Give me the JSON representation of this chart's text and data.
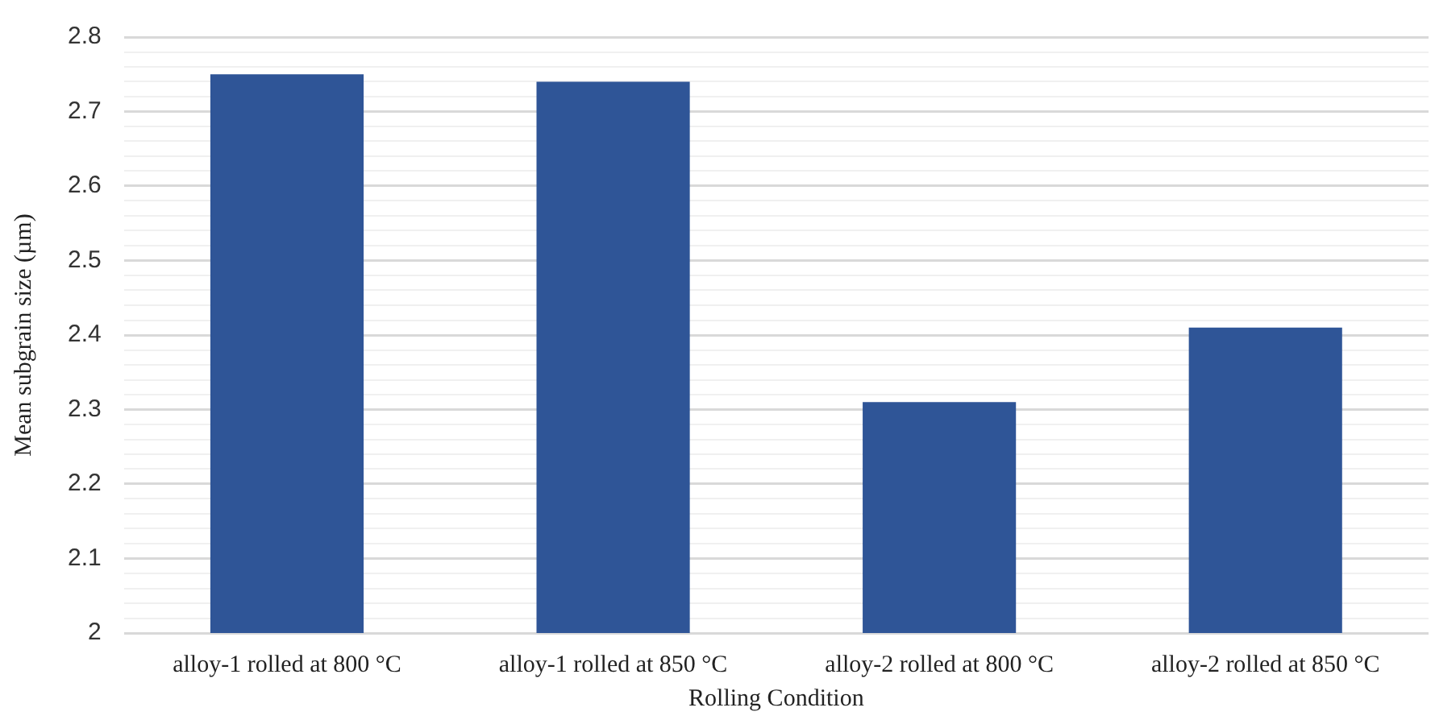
{
  "chart_data": {
    "type": "bar",
    "xlabel": "Rolling Condition",
    "ylabel": "Mean subgrain size (µm)",
    "categories": [
      "alloy-1 rolled at 800 °C",
      "alloy-1 rolled at 850 °C",
      "alloy-2 rolled at 800 °C",
      "alloy-2 rolled at 850 °C"
    ],
    "values": [
      2.75,
      2.74,
      2.31,
      2.41
    ],
    "color": "#2f5597",
    "ylim": [
      2,
      2.8
    ],
    "yticks": [
      2,
      {
        "value": 2.02,
        "label": null
      },
      {
        "value": 2.04,
        "label": null
      },
      {
        "value": 2.06,
        "label": null
      },
      {
        "value": 2.08,
        "label": null
      },
      2.1,
      {
        "value": 2.12,
        "label": null
      },
      {
        "value": 2.14,
        "label": null
      },
      {
        "value": 2.16,
        "label": null
      },
      {
        "value": 2.18,
        "label": null
      },
      2.2,
      {
        "value": 2.22,
        "label": null
      },
      {
        "value": 2.24,
        "label": null
      },
      {
        "value": 2.26,
        "label": null
      },
      {
        "value": 2.28,
        "label": null
      },
      2.3,
      {
        "value": 2.32,
        "label": null
      },
      {
        "value": 2.34,
        "label": null
      },
      {
        "value": 2.36,
        "label": null
      },
      {
        "value": 2.38,
        "label": null
      },
      2.4,
      {
        "value": 2.42,
        "label": null
      },
      {
        "value": 2.44,
        "label": null
      },
      {
        "value": 2.46,
        "label": null
      },
      {
        "value": 2.48,
        "label": null
      },
      2.5,
      {
        "value": 2.52,
        "label": null
      },
      {
        "value": 2.54,
        "label": null
      },
      {
        "value": 2.56,
        "label": null
      },
      {
        "value": 2.58,
        "label": null
      },
      2.6,
      {
        "value": 2.62,
        "label": null
      },
      {
        "value": 2.64,
        "label": null
      },
      {
        "value": 2.66,
        "label": null
      },
      {
        "value": 2.68,
        "label": null
      },
      2.7,
      {
        "value": 2.72,
        "label": null
      },
      {
        "value": 2.74,
        "label": null
      },
      {
        "value": 2.76,
        "label": null
      },
      {
        "value": 2.78,
        "label": null
      },
      2.8
    ],
    "grid": "y",
    "legend": false
  }
}
